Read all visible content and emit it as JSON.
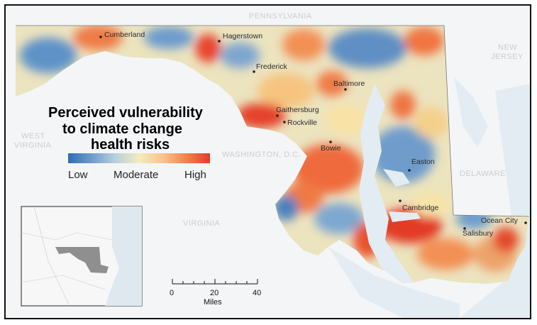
{
  "title_lines": [
    "Perceived vulnerability",
    "to climate change",
    "health risks"
  ],
  "legend": {
    "low_label": "Low",
    "mid_label": "Moderate",
    "high_label": "High",
    "colors": [
      "#2f6db5",
      "#6f9ccc",
      "#b7d0de",
      "#f3ecbc",
      "#f9c48c",
      "#f2824d",
      "#e23b28"
    ]
  },
  "neighbors": {
    "pennsylvania": "PENNSYLVANIA",
    "new_jersey_1": "NEW",
    "new_jersey_2": "JERSEY",
    "west_virginia_1": "WEST",
    "west_virginia_2": "VIRGINIA",
    "washington_dc": "WASHINGTON, D.C.",
    "delaware": "DELAWARE",
    "virginia": "VIRGINIA"
  },
  "cities": {
    "cumberland": "Cumberland",
    "hagerstown": "Hagerstown",
    "frederick": "Frederick",
    "baltimore": "Baltimore",
    "gaithersburg": "Gaithersburg",
    "rockville": "Rockville",
    "bowie": "Bowie",
    "easton": "Easton",
    "cambridge": "Cambridge",
    "ocean_city": "Ocean City",
    "salisbury": "Salisbury"
  },
  "scale": {
    "tick_0": "0",
    "tick_20": "20",
    "tick_40": "40",
    "unit": "Miles"
  },
  "colors": {
    "water": "#e3ecf3",
    "land_outside": "#f4f5f6",
    "state_fill": "#e9e2c4",
    "inset_highlight": "#8f8f8f"
  }
}
